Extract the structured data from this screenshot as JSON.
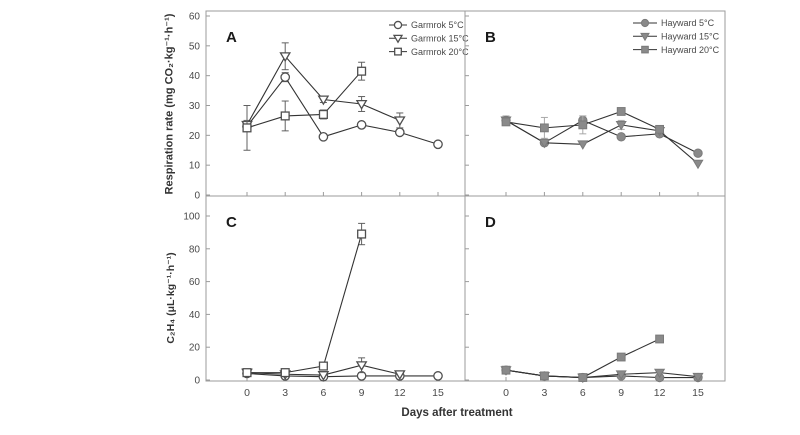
{
  "figure": {
    "xlabel": "Days after treatment",
    "ylabel_top": "Respiration rate (mg CO₂·kg⁻¹·h⁻¹)",
    "ylabel_bottom": "C₂H₄ (μL·kg⁻¹·h⁻¹)"
  },
  "colors": {
    "frame": "#9b9b9b",
    "line": "#333333",
    "open_marker_stroke": "#4f4f4f",
    "open_marker_fill": "#ffffff",
    "filled_marker": "#8a8a8a",
    "filled_marker_edge": "#7a7a7a",
    "error_bar_open": "#606060",
    "error_bar_filled": "#a8a8a8",
    "tick_label": "#4a4a4a",
    "axis_label": "#333333",
    "panel_letter": "#1a1a1a"
  },
  "chart_data": [
    {
      "panel": "A",
      "row": 0,
      "col": 0,
      "type": "line",
      "title": "",
      "xlabel": "Days after treatment",
      "ylabel": "Respiration rate (mg CO₂·kg⁻¹·h⁻¹)",
      "x": [
        0,
        3,
        6,
        9,
        12,
        15
      ],
      "xlim": [
        0,
        15
      ],
      "xticks": [
        0,
        3,
        6,
        9,
        12,
        15
      ],
      "ylim": [
        0,
        60
      ],
      "yticks": [
        0,
        10,
        20,
        30,
        40,
        50,
        60
      ],
      "grid": false,
      "legend_position": "top-right",
      "series": [
        {
          "name": "Garmrok 5°C",
          "marker": "circle",
          "style": "open",
          "values": [
            23,
            39.5,
            19.5,
            23.5,
            21,
            17
          ],
          "errors": [
            1.5,
            1.5,
            0.8,
            0.8,
            0.8,
            0.5
          ]
        },
        {
          "name": "Garmrok 15°C",
          "marker": "triangle-down",
          "style": "open",
          "values": [
            23.5,
            46.5,
            32,
            30.5,
            25,
            null
          ],
          "errors": [
            1.5,
            4.5,
            1,
            2.5,
            2.5,
            null
          ]
        },
        {
          "name": "Garmrok 20°C",
          "marker": "square",
          "style": "open",
          "values": [
            22.5,
            26.5,
            27,
            41.5,
            null,
            null
          ],
          "errors": [
            7.5,
            5,
            1.5,
            3,
            null,
            null
          ]
        }
      ]
    },
    {
      "panel": "B",
      "row": 0,
      "col": 1,
      "type": "line",
      "title": "",
      "xlabel": "Days after treatment",
      "ylabel": "Respiration rate (mg CO₂·kg⁻¹·h⁻¹)",
      "x": [
        0,
        3,
        6,
        9,
        12,
        15
      ],
      "xlim": [
        0,
        15
      ],
      "xticks": [
        0,
        3,
        6,
        9,
        12,
        15
      ],
      "ylim": [
        0,
        60
      ],
      "yticks": [
        0,
        10,
        20,
        30,
        40,
        50,
        60
      ],
      "grid": false,
      "legend_position": "top-right",
      "series": [
        {
          "name": "Hayward 5°C",
          "marker": "circle",
          "style": "filled",
          "values": [
            25,
            17.5,
            25,
            19.5,
            20.5,
            14
          ],
          "errors": [
            1.5,
            0.8,
            1.5,
            0.8,
            0.8,
            0.5
          ]
        },
        {
          "name": "Hayward 15°C",
          "marker": "triangle-down",
          "style": "filled",
          "values": [
            25,
            17.5,
            17,
            23.5,
            21.5,
            10.5
          ],
          "errors": [
            0.5,
            0.5,
            0.5,
            1.5,
            0.8,
            0.5
          ]
        },
        {
          "name": "Hayward 20°C",
          "marker": "square",
          "style": "filled",
          "values": [
            24.5,
            22.5,
            23.5,
            28,
            22,
            null
          ],
          "errors": [
            0.5,
            3.5,
            3,
            0.8,
            0.8,
            null
          ]
        }
      ]
    },
    {
      "panel": "C",
      "row": 1,
      "col": 0,
      "type": "line",
      "title": "",
      "xlabel": "Days after treatment",
      "ylabel": "C₂H₄ (μL·kg⁻¹·h⁻¹)",
      "x": [
        0,
        3,
        6,
        9,
        12,
        15
      ],
      "xlim": [
        0,
        15
      ],
      "xticks": [
        0,
        3,
        6,
        9,
        12,
        15
      ],
      "ylim": [
        0,
        100
      ],
      "yticks": [
        0,
        20,
        40,
        60,
        80,
        100
      ],
      "grid": false,
      "legend_position": "none",
      "series": [
        {
          "name": "Garmrok 5°C",
          "marker": "circle",
          "style": "open",
          "values": [
            4,
            2.5,
            2,
            2.5,
            2.5,
            2.5
          ],
          "errors": [
            0.5,
            0.5,
            0.5,
            0.5,
            0.5,
            0.5
          ]
        },
        {
          "name": "Garmrok 15°C",
          "marker": "triangle-down",
          "style": "open",
          "values": [
            4.5,
            3.5,
            3,
            9,
            3.5,
            null
          ],
          "errors": [
            0.5,
            0.5,
            0.5,
            4.5,
            0.5,
            null
          ]
        },
        {
          "name": "Garmrok 20°C",
          "marker": "square",
          "style": "open",
          "values": [
            4.5,
            4.5,
            8.5,
            89,
            null,
            null
          ],
          "errors": [
            0.5,
            0.5,
            1.5,
            6.5,
            null,
            null
          ]
        }
      ]
    },
    {
      "panel": "D",
      "row": 1,
      "col": 1,
      "type": "line",
      "title": "",
      "xlabel": "Days after treatment",
      "ylabel": "C₂H₄ (μL·kg⁻¹·h⁻¹)",
      "x": [
        0,
        3,
        6,
        9,
        12,
        15
      ],
      "xlim": [
        0,
        15
      ],
      "xticks": [
        0,
        3,
        6,
        9,
        12,
        15
      ],
      "ylim": [
        0,
        100
      ],
      "yticks": [
        0,
        20,
        40,
        60,
        80,
        100
      ],
      "grid": false,
      "legend_position": "none",
      "series": [
        {
          "name": "Hayward 5°C",
          "marker": "circle",
          "style": "filled",
          "values": [
            6,
            2.5,
            1.5,
            2.5,
            1.5,
            1.5
          ],
          "errors": [
            0.5,
            0.5,
            0.5,
            0.5,
            0.5,
            0.5
          ]
        },
        {
          "name": "Hayward 15°C",
          "marker": "triangle-down",
          "style": "filled",
          "values": [
            6,
            2.5,
            1.5,
            3.5,
            4.5,
            2
          ],
          "errors": [
            0.5,
            0.5,
            0.5,
            0.5,
            0.5,
            0.5
          ]
        },
        {
          "name": "Hayward 20°C",
          "marker": "square",
          "style": "filled",
          "values": [
            6,
            2.5,
            1.5,
            14,
            25,
            null
          ],
          "errors": [
            0.5,
            0.5,
            0.5,
            0.5,
            0.5,
            null
          ]
        }
      ]
    }
  ]
}
